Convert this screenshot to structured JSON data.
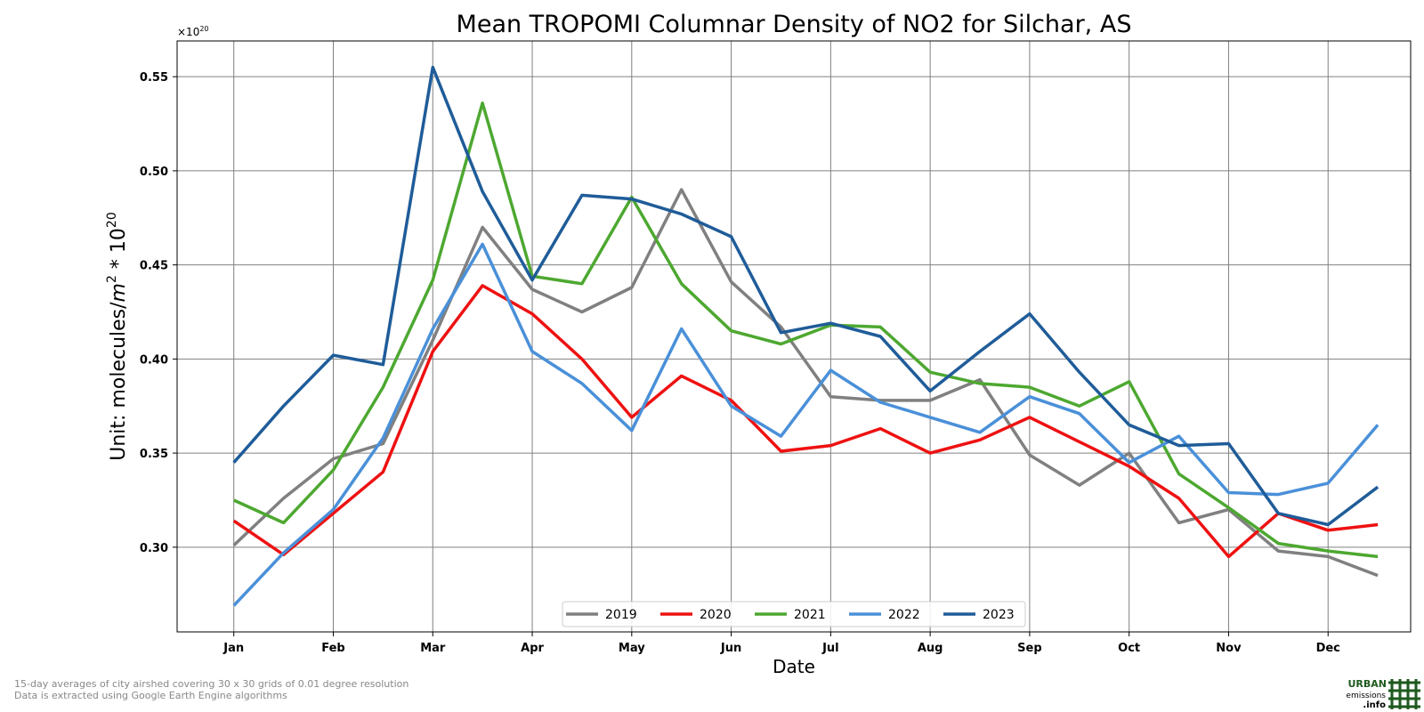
{
  "footnotes": {
    "line1": "15-day averages of city airshed covering 30 x 30 grids of 0.01 degree resolution",
    "line2": "Data is extracted using Google Earth Engine algorithms"
  },
  "logo": {
    "line1": "URBAN",
    "line2": "emissions",
    "line3": ".info",
    "color": "#1e5a1e"
  },
  "chart_data": {
    "type": "line",
    "title": "Mean TROPOMI Columnar Density of NO2 for Silchar, AS",
    "xlabel": "Date",
    "ylabel_parts": [
      "Unit: molecules/",
      "m",
      "2",
      " * 10",
      "20"
    ],
    "y_multiplier_label": "×10",
    "y_multiplier_exp": "20",
    "x_tick_labels": [
      "Jan",
      "Feb",
      "Mar",
      "Apr",
      "May",
      "Jun",
      "Jul",
      "Aug",
      "Sep",
      "Oct",
      "Nov",
      "Dec"
    ],
    "y_tick_labels": [
      "0.30",
      "0.35",
      "0.40",
      "0.45",
      "0.50",
      "0.55"
    ],
    "y_ticks": [
      0.3,
      0.35,
      0.4,
      0.45,
      0.5,
      0.55
    ],
    "x_range": [
      -0.57,
      11.83
    ],
    "ylim": [
      0.255,
      0.569
    ],
    "grid": true,
    "legend_position": "bottom-center",
    "x": [
      0,
      0.5,
      1,
      1.5,
      2,
      2.5,
      3,
      3.5,
      4,
      4.5,
      5,
      5.5,
      6,
      6.5,
      7,
      7.5,
      8,
      8.5,
      9,
      9.5,
      10,
      10.5,
      11,
      11.5
    ],
    "series": [
      {
        "name": "2019",
        "color": "#808080",
        "values": [
          0.301,
          0.326,
          0.347,
          0.355,
          0.41,
          0.47,
          0.437,
          0.425,
          0.438,
          0.49,
          0.441,
          0.417,
          0.38,
          0.378,
          0.378,
          0.389,
          0.349,
          0.333,
          0.35,
          0.313,
          0.32,
          0.298,
          0.295,
          0.285
        ]
      },
      {
        "name": "2020",
        "color": "#ee1111",
        "values": [
          0.314,
          0.296,
          0.318,
          0.34,
          0.404,
          0.439,
          0.424,
          0.4,
          0.369,
          0.391,
          0.378,
          0.351,
          0.354,
          0.363,
          0.35,
          0.357,
          0.369,
          0.356,
          0.343,
          0.326,
          0.295,
          0.318,
          0.309,
          0.312
        ]
      },
      {
        "name": "2021",
        "color": "#4da830",
        "values": [
          0.325,
          0.313,
          0.341,
          0.385,
          0.442,
          0.536,
          0.444,
          0.44,
          0.486,
          0.44,
          0.415,
          0.408,
          0.418,
          0.417,
          0.393,
          0.387,
          0.385,
          0.375,
          0.388,
          0.339,
          0.321,
          0.302,
          0.298,
          0.295
        ]
      },
      {
        "name": "2022",
        "color": "#4a90d9",
        "values": [
          0.269,
          0.297,
          0.32,
          0.358,
          0.416,
          0.461,
          0.404,
          0.387,
          0.362,
          0.416,
          0.375,
          0.359,
          0.394,
          0.377,
          0.369,
          0.361,
          0.38,
          0.371,
          0.345,
          0.359,
          0.329,
          0.328,
          0.334,
          0.365
        ]
      },
      {
        "name": "2023",
        "color": "#1f5c99",
        "values": [
          0.345,
          0.375,
          0.402,
          0.397,
          0.555,
          0.489,
          0.442,
          0.487,
          0.485,
          0.477,
          0.465,
          0.414,
          0.419,
          0.412,
          0.383,
          0.404,
          0.424,
          0.393,
          0.365,
          0.354,
          0.355,
          0.318,
          0.312,
          0.332
        ]
      }
    ]
  }
}
